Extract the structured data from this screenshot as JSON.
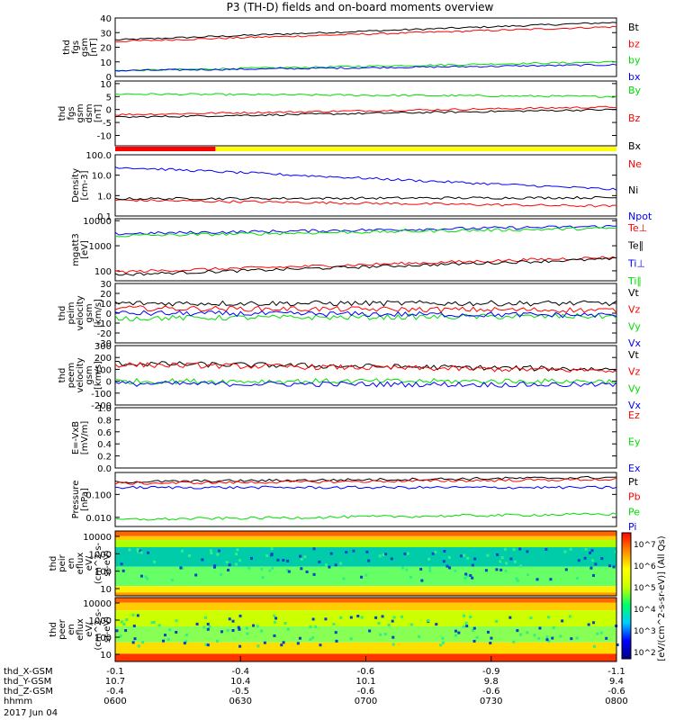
{
  "title": "P3 (TH-D) fields and on-board moments overview",
  "colors": {
    "black": "#000000",
    "red": "#ff0000",
    "green": "#00dd00",
    "blue": "#0000ff"
  },
  "chart_data": [
    {
      "type": "line",
      "ylabel": [
        "thd",
        "fgs",
        "gsm",
        "[nT]"
      ],
      "yticks": [
        "0",
        "10",
        "20",
        "30",
        "40"
      ],
      "ylim": [
        0,
        40
      ],
      "series": [
        {
          "name": "Bt",
          "color": "black",
          "start": 25,
          "end": 37
        },
        {
          "name": "bz",
          "color": "red",
          "start": 24,
          "end": 34
        },
        {
          "name": "by",
          "color": "green",
          "start": 4,
          "end": 10
        },
        {
          "name": "bx",
          "color": "blue",
          "start": 4,
          "end": 8
        }
      ]
    },
    {
      "type": "line",
      "ylabel": [
        "thd",
        "fgs",
        "gsm",
        "dsm",
        "[nT]"
      ],
      "yticks": [
        "-10",
        "-5",
        "0",
        "5",
        "10"
      ],
      "ylim": [
        -14,
        11
      ],
      "series": [
        {
          "name": "By",
          "color": "green",
          "start": 6,
          "end": 5
        },
        {
          "name": "Bz",
          "color": "red",
          "start": -2,
          "end": 1
        },
        {
          "name": "Bx",
          "color": "black",
          "start": -3,
          "end": 0
        }
      ]
    },
    {
      "type": "line",
      "ylabel": [
        "Density",
        "[cm-3]"
      ],
      "yticks": [
        "0.1",
        "1.0",
        "10.0",
        "100.0"
      ],
      "log": true,
      "ylim": [
        0.1,
        100
      ],
      "series": [
        {
          "name": "Ne",
          "color": "red",
          "start": 0.6,
          "end": 0.3
        },
        {
          "name": "Ni",
          "color": "black",
          "start": 0.7,
          "end": 0.8
        },
        {
          "name": "Npot",
          "color": "blue",
          "start": 25,
          "end": 2
        }
      ]
    },
    {
      "type": "line",
      "ylabel": [
        "mgatt3",
        "[eV]"
      ],
      "yticks": [
        "100",
        "1000",
        "10000"
      ],
      "log": true,
      "ylim": [
        40,
        12000
      ],
      "series": [
        {
          "name": "Te⊥",
          "color": "red",
          "start": 90,
          "end": 350
        },
        {
          "name": "Te∥",
          "color": "black",
          "start": 70,
          "end": 300
        },
        {
          "name": "Ti⊥",
          "color": "blue",
          "start": 3000,
          "end": 6000
        },
        {
          "name": "Ti∥",
          "color": "green",
          "start": 2500,
          "end": 5000
        }
      ]
    },
    {
      "type": "line",
      "ylabel": [
        "thd",
        "peim",
        "velocity",
        "gsm",
        "[km/s]"
      ],
      "yticks": [
        "-30",
        "-20",
        "-10",
        "0",
        "10",
        "20",
        "30"
      ],
      "ylim": [
        -30,
        30
      ],
      "series": [
        {
          "name": "Vt",
          "color": "black",
          "start": 10,
          "end": 10
        },
        {
          "name": "Vz",
          "color": "red",
          "start": 5,
          "end": 3
        },
        {
          "name": "Vy",
          "color": "green",
          "start": -5,
          "end": -3
        },
        {
          "name": "Vx",
          "color": "blue",
          "start": 0,
          "end": -2
        }
      ]
    },
    {
      "type": "line",
      "ylabel": [
        "thd",
        "peem",
        "velocity",
        "gsm",
        "[km/s]"
      ],
      "yticks": [
        "-200",
        "-100",
        "0",
        "100",
        "200",
        "300"
      ],
      "ylim": [
        -200,
        300
      ],
      "series": [
        {
          "name": "Vt",
          "color": "black",
          "start": 150,
          "end": 100
        },
        {
          "name": "Vz",
          "color": "red",
          "start": 140,
          "end": 90
        },
        {
          "name": "Vy",
          "color": "green",
          "start": 0,
          "end": 0
        },
        {
          "name": "Vx",
          "color": "blue",
          "start": -20,
          "end": -30
        }
      ]
    },
    {
      "type": "line",
      "ylabel": [
        "E=-VxB",
        "[mV/m]"
      ],
      "yticks": [
        "0.0",
        "0.2",
        "0.4",
        "0.6",
        "0.8",
        "1.0"
      ],
      "ylim": [
        0,
        1
      ],
      "series": [
        {
          "name": "Ez",
          "color": "red",
          "start": null,
          "end": null
        },
        {
          "name": "Ey",
          "color": "green",
          "start": null,
          "end": null
        },
        {
          "name": "Ex",
          "color": "blue",
          "start": null,
          "end": null
        }
      ]
    },
    {
      "type": "line",
      "ylabel": [
        "Pressure",
        "[nPa]"
      ],
      "yticks": [
        "0.010",
        "0.100"
      ],
      "log": true,
      "ylim": [
        0.004,
        0.9
      ],
      "series": [
        {
          "name": "Pt",
          "color": "black",
          "start": 0.35,
          "end": 0.55
        },
        {
          "name": "Pb",
          "color": "red",
          "start": 0.3,
          "end": 0.45
        },
        {
          "name": "Pe",
          "color": "green",
          "start": 0.008,
          "end": 0.014
        },
        {
          "name": "Pi",
          "color": "blue",
          "start": 0.2,
          "end": 0.2
        }
      ]
    },
    {
      "type": "heatmap",
      "ylabel": [
        "thd",
        "peir",
        "en",
        "eflux",
        "eV/",
        "(cm^2-s-",
        "sr-eV)"
      ],
      "yticks": [
        "10",
        "100",
        "1000",
        "10000"
      ]
    },
    {
      "type": "heatmap",
      "ylabel": [
        "thd",
        "peer",
        "en",
        "eflux",
        "eV/",
        "(cm^2-s-",
        "sr-eV)"
      ],
      "yticks": [
        "10",
        "100",
        "1000",
        "10000"
      ]
    }
  ],
  "colorbar": {
    "label": "[eV/(cm^2-s-sr-eV)] (All Qs)",
    "ticks": [
      "10^2",
      "10^3",
      "10^4",
      "10^5",
      "10^6",
      "10^7"
    ]
  },
  "xaxis": {
    "rows": [
      {
        "label": "thd_X-GSM",
        "values": [
          "-0.1",
          "-0.4",
          "-0.6",
          "-0.9",
          "-1.1"
        ]
      },
      {
        "label": "thd_Y-GSM",
        "values": [
          "10.7",
          "10.4",
          "10.1",
          "9.8",
          "9.4"
        ]
      },
      {
        "label": "thd_Z-GSM",
        "values": [
          "-0.4",
          "-0.5",
          "-0.6",
          "-0.6",
          "-0.6"
        ]
      },
      {
        "label": "hhmm",
        "values": [
          "0600",
          "0630",
          "0700",
          "0730",
          "0800"
        ]
      }
    ],
    "date": "2017 Jun 04"
  },
  "mode_bar": {
    "colors": [
      "#ff0000",
      "#ffff00"
    ],
    "switch_fraction": 0.2
  }
}
